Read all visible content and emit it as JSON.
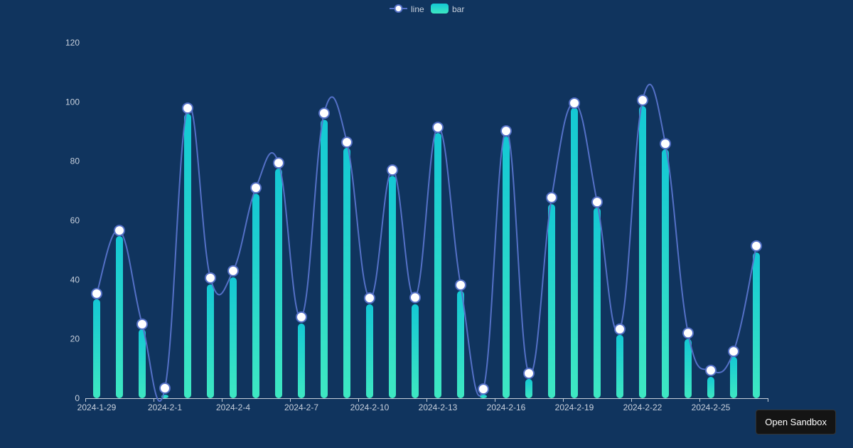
{
  "chart_data": {
    "type": "bar",
    "categories": [
      "2024-1-29",
      "2024-1-30",
      "2024-1-31",
      "2024-2-1",
      "2024-2-2",
      "2024-2-3",
      "2024-2-4",
      "2024-2-5",
      "2024-2-6",
      "2024-2-7",
      "2024-2-8",
      "2024-2-9",
      "2024-2-10",
      "2024-2-11",
      "2024-2-12",
      "2024-2-13",
      "2024-2-14",
      "2024-2-15",
      "2024-2-16",
      "2024-2-17",
      "2024-2-18",
      "2024-2-19",
      "2024-2-20",
      "2024-2-21",
      "2024-2-22",
      "2024-2-23",
      "2024-2-24",
      "2024-2-25",
      "2024-2-26",
      "2024-2-27"
    ],
    "x_tick_labels": [
      "2024-1-29",
      "2024-2-1",
      "2024-2-4",
      "2024-2-7",
      "2024-2-10",
      "2024-2-13",
      "2024-2-16",
      "2024-2-19",
      "2024-2-22",
      "2024-2-25"
    ],
    "y_tick_labels": [
      "0",
      "20",
      "40",
      "60",
      "80",
      "100",
      "120"
    ],
    "ylim": [
      0,
      120
    ],
    "grid": false,
    "legend": "top-center",
    "series": [
      {
        "name": "line",
        "type": "line",
        "color": "#5470c6",
        "values": [
          35.3,
          56.6,
          25,
          3.4,
          97.9,
          40.6,
          43,
          71,
          79.4,
          27.4,
          96.2,
          86.4,
          33.8,
          77,
          34,
          91.4,
          38.2,
          3.1,
          90.2,
          8.4,
          67.7,
          99.6,
          66.2,
          23.3,
          100.6,
          85.9,
          22,
          9.4,
          15.8,
          51.4
        ]
      },
      {
        "name": "bar",
        "type": "bar",
        "color_top": "#14c8d4",
        "color_bottom": "#3ee8c2",
        "values": [
          33.4,
          54.7,
          23.3,
          1.2,
          96,
          38.4,
          40.8,
          69,
          77.5,
          25.2,
          94,
          84.5,
          31.7,
          75,
          31.7,
          89.5,
          36.2,
          1.2,
          88.3,
          6.5,
          65.5,
          98,
          64.3,
          21.4,
          98.6,
          84,
          20,
          7.2,
          14,
          49.2
        ]
      }
    ]
  },
  "sandbox_button": "Open Sandbox"
}
